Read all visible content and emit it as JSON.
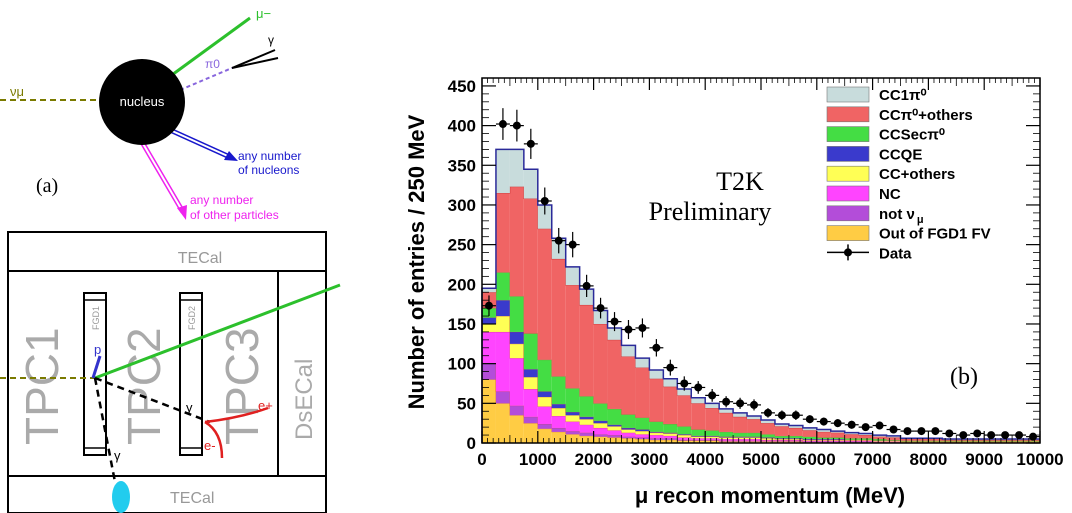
{
  "diagram_a": {
    "panel_label": "(a)",
    "nucleus_label": "nucleus",
    "neutrino_label": "νμ",
    "muon_label": "μ−",
    "pi0_label": "π0",
    "gamma_label": "γ",
    "nucleons_label_line1": "any number",
    "nucleons_label_line2": "of nucleons",
    "others_label_line1": "any number",
    "others_label_line2": "of other particles"
  },
  "detector": {
    "tecal_top": "TECal",
    "tecal_bottom": "TECal",
    "tpc1": "TPC1",
    "tpc2": "TPC2",
    "tpc3": "TPC3",
    "fgd1": "FGD1",
    "fgd2": "FGD2",
    "dsecal": "DsECal",
    "proton_label": "p",
    "gamma_label": "γ",
    "eplus_label": "e+",
    "eminus_label": "e-"
  },
  "colors": {
    "CC1pi0": "#c8dcdc",
    "CCpi0others": "#f06464",
    "CCSecpi0": "#44dd44",
    "CCQE": "#3a3acc",
    "CCothers": "#ffff55",
    "NC": "#ff44ff",
    "notnumu": "#b34dd9",
    "OOFV": "#ffcc44",
    "muon": "#2cc02c",
    "neutrino": "#7a7a00",
    "pi0": "#8866dd",
    "nucleons": "#1818cc",
    "others": "#ee22ee",
    "shower": "#22ccee"
  },
  "chart_data": {
    "type": "bar",
    "stacked": true,
    "xlabel": "μ recon momentum (MeV)",
    "ylabel": "Number of entries / 250 MeV",
    "xlim": [
      0,
      10000
    ],
    "ylim": [
      0,
      460
    ],
    "bin_width": 250,
    "x_ticks": [
      "0",
      "1000",
      "2000",
      "3000",
      "4000",
      "5000",
      "6000",
      "7000",
      "8000",
      "9000",
      "10000"
    ],
    "y_ticks": [
      "0",
      "50",
      "100",
      "150",
      "200",
      "250",
      "300",
      "350",
      "400",
      "450"
    ],
    "annotation_line1": "T2K",
    "annotation_line2": "Preliminary",
    "panel_label": "(b)",
    "legend_position": "top-right",
    "bins_left_edges": [
      0,
      250,
      500,
      750,
      1000,
      1250,
      1500,
      1750,
      2000,
      2250,
      2500,
      2750,
      3000,
      3250,
      3500,
      3750,
      4000,
      4250,
      4500,
      4750,
      5000,
      5250,
      5500,
      5750,
      6000,
      6250,
      6500,
      6750,
      7000,
      7250,
      7500,
      7750,
      8000,
      8250,
      8500,
      8750,
      9000,
      9250,
      9500,
      9750
    ],
    "series": [
      {
        "name": "Out of FGD1 FV",
        "color_key": "OOFV",
        "values": [
          80,
          50,
          35,
          25,
          18,
          14,
          11,
          9,
          8,
          7,
          6,
          5,
          4,
          4,
          3,
          3,
          3,
          2,
          2,
          2,
          2,
          2,
          2,
          1,
          1,
          1,
          1,
          1,
          1,
          1,
          1,
          1,
          1,
          1,
          1,
          1,
          1,
          1,
          1,
          1
        ]
      },
      {
        "name": "not ν_μ",
        "color_key": "notnumu",
        "values": [
          20,
          15,
          12,
          8,
          6,
          5,
          4,
          4,
          3,
          3,
          2,
          2,
          2,
          2,
          1,
          1,
          1,
          1,
          1,
          1,
          1,
          1,
          1,
          1,
          1,
          1,
          1,
          1,
          0,
          0,
          0,
          0,
          0,
          0,
          0,
          0,
          0,
          0,
          0,
          0
        ]
      },
      {
        "name": "NC",
        "color_key": "NC",
        "values": [
          40,
          75,
          60,
          35,
          22,
          15,
          12,
          10,
          8,
          6,
          5,
          4,
          4,
          3,
          3,
          2,
          2,
          2,
          2,
          2,
          1,
          1,
          1,
          1,
          1,
          1,
          1,
          1,
          1,
          1,
          0,
          0,
          0,
          0,
          0,
          0,
          0,
          0,
          0,
          0
        ]
      },
      {
        "name": "CC+others",
        "color_key": "CCothers",
        "values": [
          10,
          20,
          18,
          15,
          12,
          10,
          8,
          7,
          6,
          5,
          4,
          4,
          3,
          3,
          3,
          2,
          2,
          2,
          2,
          2,
          2,
          1,
          1,
          1,
          1,
          1,
          1,
          1,
          1,
          1,
          1,
          1,
          1,
          1,
          1,
          1,
          1,
          1,
          1,
          1
        ]
      },
      {
        "name": "CCQE",
        "color_key": "CCQE",
        "values": [
          8,
          20,
          15,
          10,
          7,
          5,
          4,
          3,
          3,
          2,
          2,
          2,
          1,
          1,
          1,
          1,
          1,
          1,
          1,
          1,
          1,
          1,
          1,
          1,
          1,
          1,
          0,
          0,
          0,
          0,
          0,
          0,
          0,
          0,
          0,
          0,
          0,
          0,
          0,
          0
        ]
      },
      {
        "name": "CCSecπ⁰",
        "color_key": "CCSecpi0",
        "values": [
          12,
          35,
          45,
          45,
          40,
          35,
          30,
          26,
          22,
          20,
          17,
          15,
          13,
          11,
          10,
          8,
          7,
          6,
          5,
          5,
          4,
          3,
          3,
          3,
          2,
          2,
          2,
          2,
          2,
          1,
          1,
          1,
          1,
          1,
          1,
          1,
          1,
          1,
          1,
          1
        ]
      },
      {
        "name": "CCπ⁰+others",
        "color_key": "CCpi0others",
        "values": [
          20,
          100,
          138,
          170,
          165,
          148,
          130,
          115,
          100,
          87,
          73,
          63,
          54,
          47,
          39,
          33,
          28,
          24,
          20,
          17,
          14,
          12,
          10,
          8,
          7,
          6,
          5,
          4,
          3,
          3,
          2,
          2,
          2,
          1,
          1,
          1,
          1,
          1,
          1,
          1
        ]
      },
      {
        "name": "CC1π⁰",
        "color_key": "CC1pi0",
        "values": [
          5,
          55,
          47,
          37,
          30,
          26,
          23,
          20,
          17,
          15,
          14,
          12,
          11,
          10,
          8,
          7,
          6,
          5,
          5,
          4,
          4,
          3,
          3,
          3,
          3,
          2,
          2,
          2,
          2,
          2,
          1,
          1,
          1,
          1,
          1,
          1,
          1,
          1,
          1,
          1
        ]
      }
    ],
    "data_points": {
      "name": "Data",
      "x": [
        125,
        375,
        625,
        875,
        1125,
        1375,
        1625,
        1875,
        2125,
        2375,
        2625,
        2875,
        3125,
        3375,
        3625,
        3875,
        4125,
        4375,
        4625,
        4875,
        5125,
        5375,
        5625,
        5875,
        6125,
        6375,
        6625,
        6875,
        7125,
        7375,
        7625,
        7875,
        8125,
        8375,
        8625,
        8875,
        9125,
        9375,
        9625,
        9875
      ],
      "y": [
        173,
        402,
        400,
        377,
        305,
        255,
        250,
        198,
        170,
        153,
        143,
        145,
        120,
        95,
        75,
        70,
        60,
        52,
        50,
        48,
        38,
        35,
        35,
        30,
        27,
        25,
        23,
        20,
        22,
        17,
        15,
        15,
        15,
        12,
        10,
        12,
        10,
        10,
        10,
        8
      ],
      "err": [
        13,
        20,
        20,
        19,
        17,
        16,
        16,
        14,
        13,
        12,
        12,
        12,
        11,
        10,
        9,
        8,
        8,
        7,
        7,
        7,
        6,
        6,
        6,
        5,
        5,
        5,
        5,
        4,
        5,
        4,
        4,
        4,
        4,
        3,
        3,
        3,
        3,
        3,
        3,
        3
      ]
    },
    "legend": [
      {
        "label": "CC1π⁰",
        "color_key": "CC1pi0"
      },
      {
        "label": "CCπ⁰+others",
        "color_key": "CCpi0others"
      },
      {
        "label": "CCSecπ⁰",
        "color_key": "CCSecpi0"
      },
      {
        "label": "CCQE",
        "color_key": "CCQE"
      },
      {
        "label": "CC+others",
        "color_key": "CCothers"
      },
      {
        "label": "NC",
        "color_key": "NC"
      },
      {
        "label": "not ν",
        "sub": "μ",
        "color_key": "notnumu"
      },
      {
        "label": "Out of FGD1 FV",
        "color_key": "OOFV"
      },
      {
        "label": "Data",
        "marker": true
      }
    ]
  }
}
